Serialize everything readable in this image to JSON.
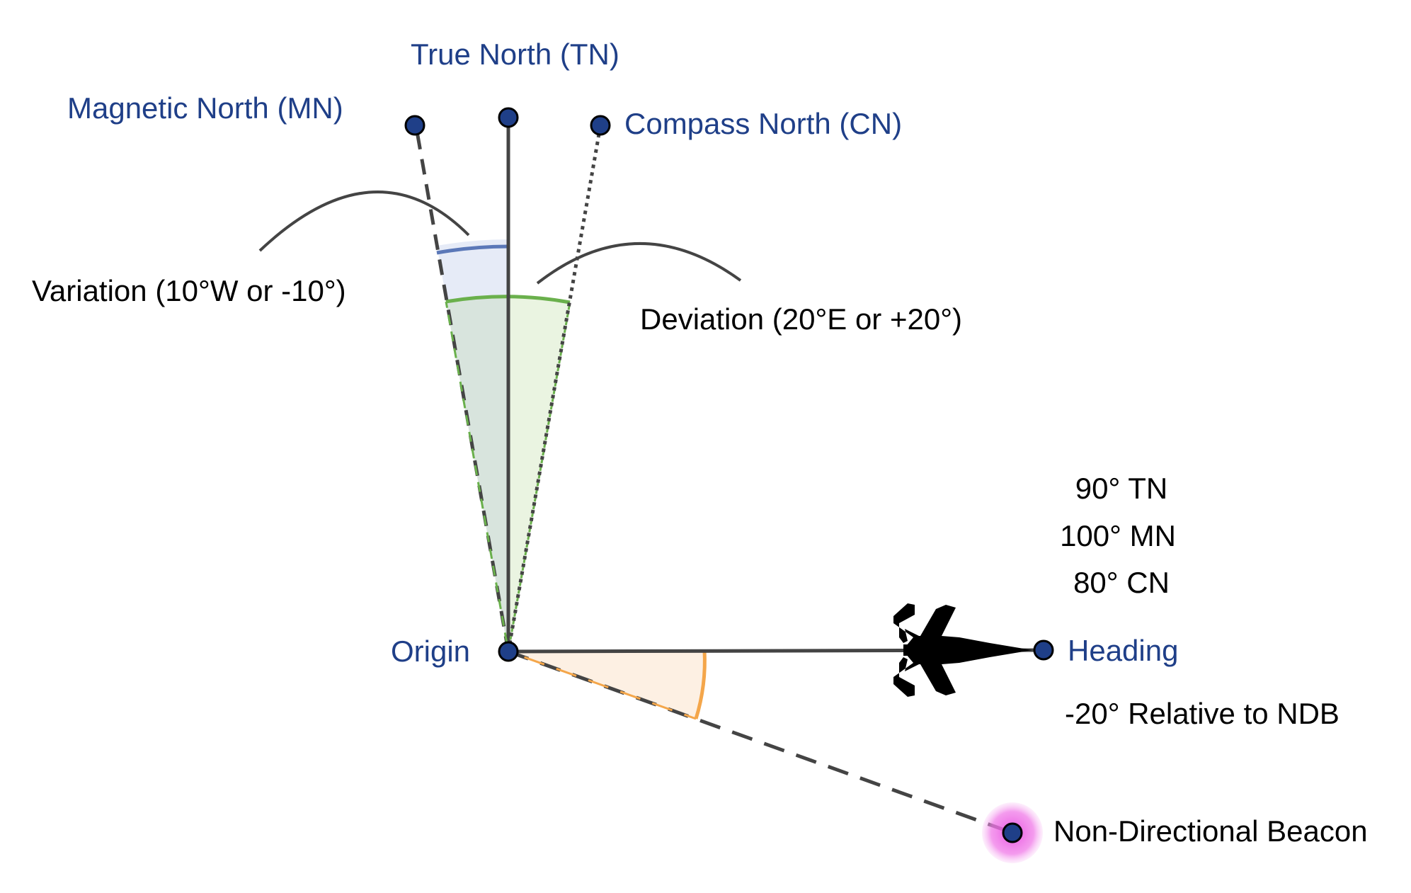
{
  "labels": {
    "true_north": "True North (TN)",
    "magnetic_north": "Magnetic North (MN)",
    "compass_north": "Compass North (CN)",
    "variation": "Variation (10°W or -10°)",
    "deviation": "Deviation (20°E or +20°)",
    "bearing_tn": "90° TN",
    "bearing_mn": "100° MN",
    "bearing_cn": "80° CN",
    "origin": "Origin",
    "heading": "Heading",
    "relative": "-20° Relative to NDB",
    "ndb": "Non-Directional Beacon"
  },
  "colors": {
    "label_blue": "#1f3f88",
    "point_fill": "#1f3f88",
    "line": "#444444",
    "variation_arc": "#5b78b8",
    "variation_fill": "#e3e9f6",
    "deviation_arc": "#6ab04c",
    "deviation_fill": "#e6f2dc",
    "relative_arc": "#f4a64a",
    "relative_fill": "#fdf0e3",
    "beacon_glow": "#e94de0"
  }
}
